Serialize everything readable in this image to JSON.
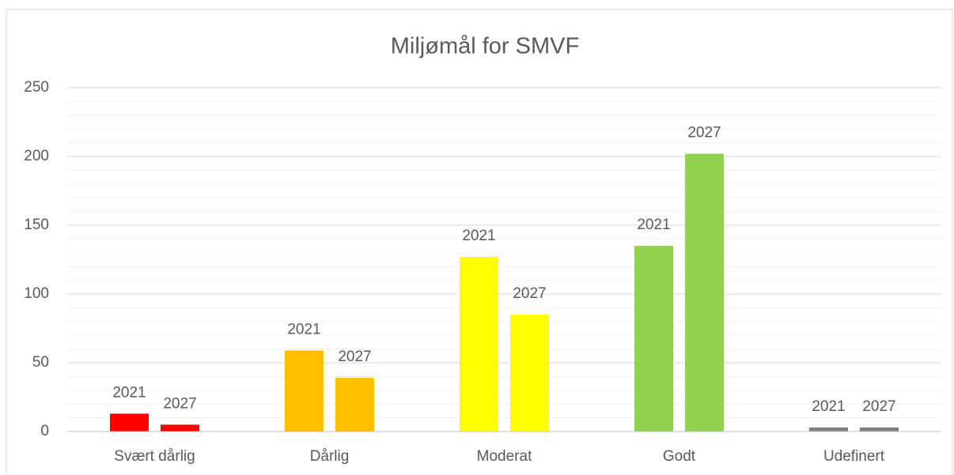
{
  "chart_data": {
    "type": "bar",
    "title": "Miljømål for SMVF",
    "categories": [
      "Svært dårlig",
      "Dårlig",
      "Moderat",
      "Godt",
      "Udefinert"
    ],
    "category_colors": [
      "#ff0000",
      "#ffc000",
      "#ffff00",
      "#92d050",
      "#808080"
    ],
    "series": [
      {
        "name": "2021",
        "values": [
          13,
          59,
          127,
          135,
          3
        ]
      },
      {
        "name": "2027",
        "values": [
          5,
          39,
          85,
          202,
          3
        ]
      }
    ],
    "ylim": [
      0,
      250
    ],
    "yticks": [
      0,
      50,
      100,
      150,
      200,
      250
    ],
    "grid": true,
    "minor_grid": true
  }
}
